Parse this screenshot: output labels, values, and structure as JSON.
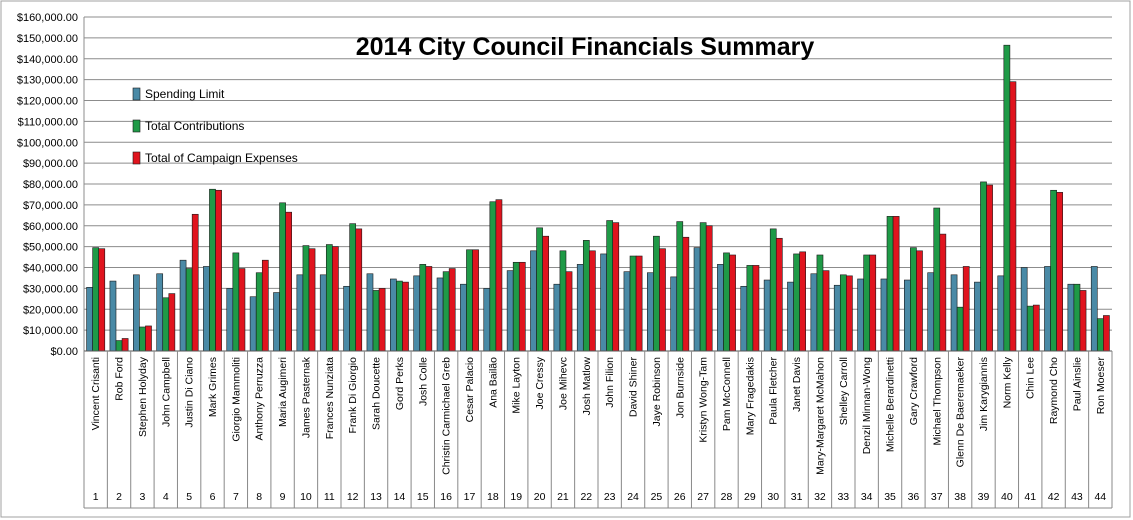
{
  "chart_data": {
    "type": "bar",
    "title": "2014 City Council Financials Summary",
    "xlabel": "",
    "ylabel": "",
    "ylim": [
      0,
      160000
    ],
    "y_ticks": [
      "$0.00",
      "$10,000.00",
      "$20,000.00",
      "$30,000.00",
      "$40,000.00",
      "$50,000.00",
      "$60,000.00",
      "$70,000.00",
      "$80,000.00",
      "$90,000.00",
      "$100,000.00",
      "$110,000.00",
      "$120,000.00",
      "$130,000.00",
      "$140,000.00",
      "$150,000.00",
      "$160,000.00"
    ],
    "grid": true,
    "legend_position": "top-left",
    "categories": [
      "Vincent Crisanti",
      "Rob Ford",
      "Stephen Holyday",
      "John Campbell",
      "Justin Di Ciano",
      "Mark Grimes",
      "Giorgio Mammoliti",
      "Anthony Perruzza",
      "Maria Augimeri",
      "James Pasternak",
      "Frances Nunziata",
      "Frank Di Giorgio",
      "Sarah Doucette",
      "Gord Perks",
      "Josh Colle",
      "Christin Carmichael Greb",
      "Cesar Palacio",
      "Ana Bailão",
      "Mike Layton",
      "Joe Cressy",
      "Joe Mihevc",
      "Josh Matlow",
      "John Filion",
      "David Shiner",
      "Jaye Robinson",
      "Jon Burnside",
      "Kristyn Wong-Tam",
      "Pam McConnell",
      "Mary Fragedakis",
      "Paula Fletcher",
      "Janet Davis",
      "Mary-Margaret McMahon",
      "Shelley Carroll",
      "Denzil Minnan-Wong",
      "Michelle Berardinetti",
      "Gary Crawford",
      "Michael Thompson",
      "Glenn De Baeremaeker",
      "Jim Karygiannis",
      "Norm Kelly",
      "Chin Lee",
      "Raymond Cho",
      "Paul Ainslie",
      "Ron Moeser"
    ],
    "wards": [
      "1",
      "2",
      "3",
      "4",
      "5",
      "6",
      "7",
      "8",
      "9",
      "10",
      "11",
      "12",
      "13",
      "14",
      "15",
      "16",
      "17",
      "18",
      "19",
      "20",
      "21",
      "22",
      "23",
      "24",
      "25",
      "26",
      "27",
      "28",
      "29",
      "30",
      "31",
      "32",
      "33",
      "34",
      "35",
      "36",
      "37",
      "38",
      "39",
      "40",
      "41",
      "42",
      "43",
      "44"
    ],
    "series": [
      {
        "name": "Spending Limit",
        "color": "#4a8aa6",
        "values": [
          30500,
          33500,
          36500,
          37000,
          43500,
          40500,
          30000,
          26000,
          28000,
          36500,
          36500,
          31000,
          37000,
          34500,
          36000,
          35000,
          32000,
          30000,
          38500,
          48000,
          32000,
          41500,
          46500,
          38000,
          37500,
          35500,
          49500,
          41500,
          31000,
          34000,
          33000,
          37000,
          31500,
          34500,
          34500,
          34000,
          37500,
          36500,
          33000,
          36000,
          40000,
          40500,
          32000,
          40500
        ]
      },
      {
        "name": "Total Contributions",
        "color": "#1f9a47",
        "values": [
          49500,
          5000,
          11500,
          25500,
          39500,
          77500,
          47000,
          37500,
          71000,
          50500,
          51000,
          61000,
          29000,
          33500,
          41500,
          38000,
          48500,
          71500,
          42500,
          59000,
          48000,
          53000,
          62500,
          45500,
          55000,
          62000,
          61500,
          47000,
          41000,
          58500,
          46500,
          46000,
          36500,
          46000,
          64500,
          49500,
          68500,
          21000,
          81000,
          146500,
          21500,
          77000,
          32000,
          15500
        ]
      },
      {
        "name": "Total of Campaign Expenses",
        "color": "#e0141e",
        "values": [
          49000,
          6000,
          12000,
          27500,
          65500,
          77000,
          39500,
          43500,
          66500,
          49000,
          50000,
          58500,
          30000,
          33000,
          40500,
          39500,
          48500,
          72500,
          42500,
          55000,
          38000,
          48000,
          61500,
          45500,
          49000,
          54500,
          60000,
          46000,
          41000,
          54000,
          47500,
          38500,
          36000,
          46000,
          64500,
          48000,
          56000,
          40500,
          79500,
          129000,
          22000,
          76000,
          29000,
          17000
        ]
      }
    ]
  }
}
